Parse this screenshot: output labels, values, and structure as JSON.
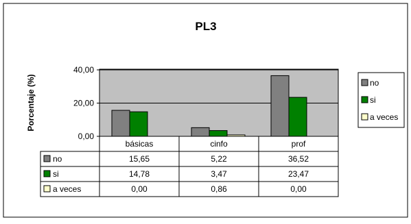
{
  "chart_data": {
    "type": "bar",
    "title": "PL3",
    "xlabel": "",
    "ylabel": "Porcentaje (%)",
    "categories": [
      "básicas",
      "cinfo",
      "prof"
    ],
    "series": [
      {
        "name": "no",
        "values": [
          15.65,
          5.22,
          36.52
        ],
        "labels": [
          "15,65",
          "5,22",
          "36,52"
        ]
      },
      {
        "name": "si",
        "values": [
          14.78,
          3.47,
          23.47
        ],
        "labels": [
          "14,78",
          "3,47",
          "23,47"
        ]
      },
      {
        "name": "a veces",
        "values": [
          0.0,
          0.86,
          0.0
        ],
        "labels": [
          "0,00",
          "0,86",
          "0,00"
        ]
      }
    ],
    "ylim": [
      0,
      40
    ],
    "yticks": [
      0,
      20,
      40
    ],
    "ytick_labels": [
      "0,00",
      "20,00",
      "40,00"
    ],
    "grid": true,
    "legend": "right",
    "data_table": true
  },
  "colors": {
    "plot_background": "#c0c0c0",
    "series": [
      "#808080",
      "#008000",
      "#ffffcc"
    ],
    "border": "#000000",
    "gridline": "#000000"
  }
}
